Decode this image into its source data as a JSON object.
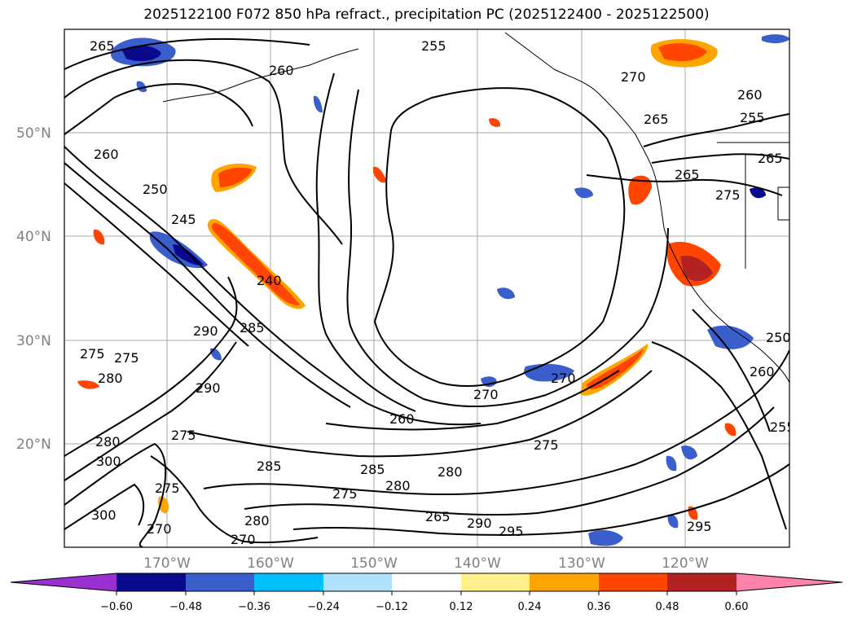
{
  "title": "2025122100 F072 850 hPa refract., precipitation PC (2025122400 - 2025122500)",
  "axes": {
    "lat_labels": [
      "50°N",
      "40°N",
      "30°N",
      "20°N"
    ],
    "lon_labels": [
      "170°W",
      "160°W",
      "150°W",
      "140°W",
      "130°W",
      "120°W"
    ]
  },
  "contour_labels": [
    "265",
    "255",
    "260",
    "270",
    "265",
    "260",
    "255",
    "265",
    "265",
    "275",
    "260",
    "250",
    "245",
    "240",
    "290",
    "285",
    "275",
    "275",
    "280",
    "290",
    "280",
    "300",
    "275",
    "300",
    "275",
    "270",
    "285",
    "280",
    "270",
    "275",
    "280",
    "270",
    "260",
    "270",
    "275",
    "285",
    "280",
    "290",
    "295",
    "295",
    "265",
    "250",
    "260",
    "255"
  ],
  "colorbar": {
    "ticks": [
      "−0.60",
      "−0.48",
      "−0.36",
      "−0.24",
      "−0.12",
      "0.12",
      "0.24",
      "0.36",
      "0.48",
      "0.60"
    ],
    "colors": [
      "#9b30d0",
      "#0a0a8c",
      "#3a5fcd",
      "#00bfff",
      "#b0e2ff",
      "#ffffff",
      "#fff08c",
      "#ffa500",
      "#ff4500",
      "#b22222",
      "#ff82ab"
    ]
  }
}
